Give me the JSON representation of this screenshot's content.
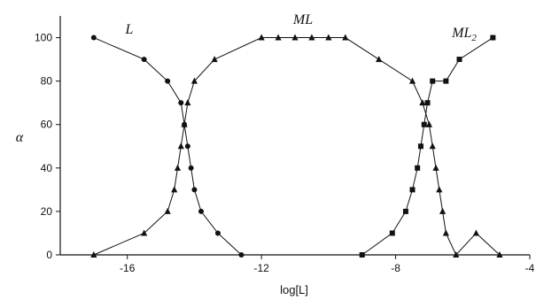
{
  "chart_data": {
    "type": "line",
    "title": "",
    "xlabel": "log[L]",
    "ylabel": "α",
    "xlim": [
      -18,
      -4
    ],
    "ylim": [
      0,
      110
    ],
    "xticks": [
      -16,
      -12,
      -8,
      -4
    ],
    "yticks": [
      0,
      20,
      40,
      60,
      80,
      100
    ],
    "grid": false,
    "series": [
      {
        "name": "L",
        "marker": "circle",
        "x": [
          -17,
          -15.5,
          -14.8,
          -14.4,
          -14.3,
          -14.2,
          -14.1,
          -14.0,
          -13.8,
          -13.3,
          -12.6
        ],
        "y": [
          100,
          90,
          80,
          70,
          60,
          50,
          40,
          30,
          20,
          10,
          0
        ]
      },
      {
        "name": "ML",
        "marker": "triangle",
        "x": [
          -17,
          -15.5,
          -14.8,
          -14.6,
          -14.5,
          -14.4,
          -14.3,
          -14.2,
          -14.0,
          -13.4,
          -12,
          -11.5,
          -11,
          -10.5,
          -10,
          -9.5,
          -8.5,
          -7.5,
          -7.2,
          -7.0,
          -6.9,
          -6.8,
          -6.7,
          -6.6,
          -6.5,
          -6.2,
          -5.6,
          -4.9
        ],
        "y": [
          0,
          10,
          20,
          30,
          40,
          50,
          60,
          70,
          80,
          90,
          100,
          100,
          100,
          100,
          100,
          100,
          90,
          80,
          70,
          60,
          50,
          40,
          30,
          20,
          10,
          0,
          10,
          0
        ]
      },
      {
        "name": "ML₂",
        "marker": "square",
        "x": [
          -9,
          -8.1,
          -7.7,
          -7.5,
          -7.35,
          -7.25,
          -7.15,
          -7.05,
          -6.9,
          -6.5,
          -6.1,
          -5.1
        ],
        "y": [
          0,
          10,
          20,
          30,
          40,
          50,
          60,
          70,
          80,
          80,
          90,
          100
        ]
      }
    ]
  },
  "labels": {
    "L": {
      "main": "L",
      "sub": ""
    },
    "ML": {
      "main": "ML",
      "sub": ""
    },
    "ML2": {
      "main": "ML",
      "sub": "2"
    }
  }
}
